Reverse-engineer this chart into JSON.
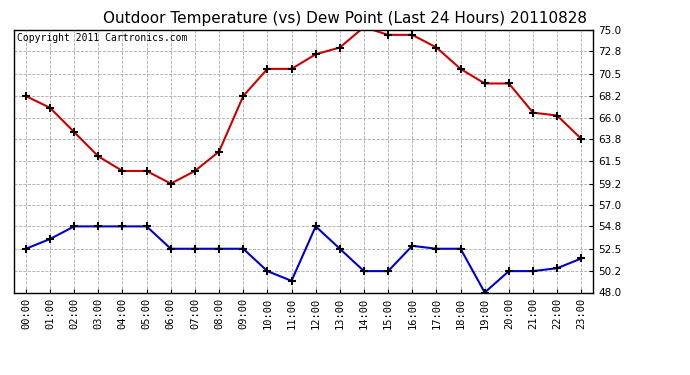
{
  "title": "Outdoor Temperature (vs) Dew Point (Last 24 Hours) 20110828",
  "copyright": "Copyright 2011 Cartronics.com",
  "x_labels": [
    "00:00",
    "01:00",
    "02:00",
    "03:00",
    "04:00",
    "05:00",
    "06:00",
    "07:00",
    "08:00",
    "09:00",
    "10:00",
    "11:00",
    "12:00",
    "13:00",
    "14:00",
    "15:00",
    "16:00",
    "17:00",
    "18:00",
    "19:00",
    "20:00",
    "21:00",
    "22:00",
    "23:00"
  ],
  "temp_data": [
    68.2,
    67.0,
    64.5,
    62.0,
    60.5,
    60.5,
    59.2,
    60.5,
    62.5,
    68.2,
    71.0,
    71.0,
    72.5,
    73.2,
    75.3,
    74.5,
    74.5,
    73.2,
    71.0,
    69.5,
    69.5,
    66.5,
    66.2,
    63.8
  ],
  "dew_data": [
    52.5,
    53.5,
    54.8,
    54.8,
    54.8,
    54.8,
    52.5,
    52.5,
    52.5,
    52.5,
    50.2,
    49.2,
    54.8,
    52.5,
    50.2,
    50.2,
    52.8,
    52.5,
    52.5,
    48.0,
    50.2,
    50.2,
    50.5,
    51.5
  ],
  "temp_color": "#cc0000",
  "dew_color": "#0000cc",
  "bg_color": "#ffffff",
  "plot_bg_color": "#ffffff",
  "grid_color": "#aaaaaa",
  "ylim_min": 48.0,
  "ylim_max": 75.0,
  "yticks": [
    48.0,
    50.2,
    52.5,
    54.8,
    57.0,
    59.2,
    61.5,
    63.8,
    66.0,
    68.2,
    70.5,
    72.8,
    75.0
  ],
  "marker": "+",
  "marker_size": 6,
  "marker_ew": 1.5,
  "line_width": 1.5,
  "title_fontsize": 11,
  "tick_fontsize": 7.5,
  "copyright_fontsize": 7
}
